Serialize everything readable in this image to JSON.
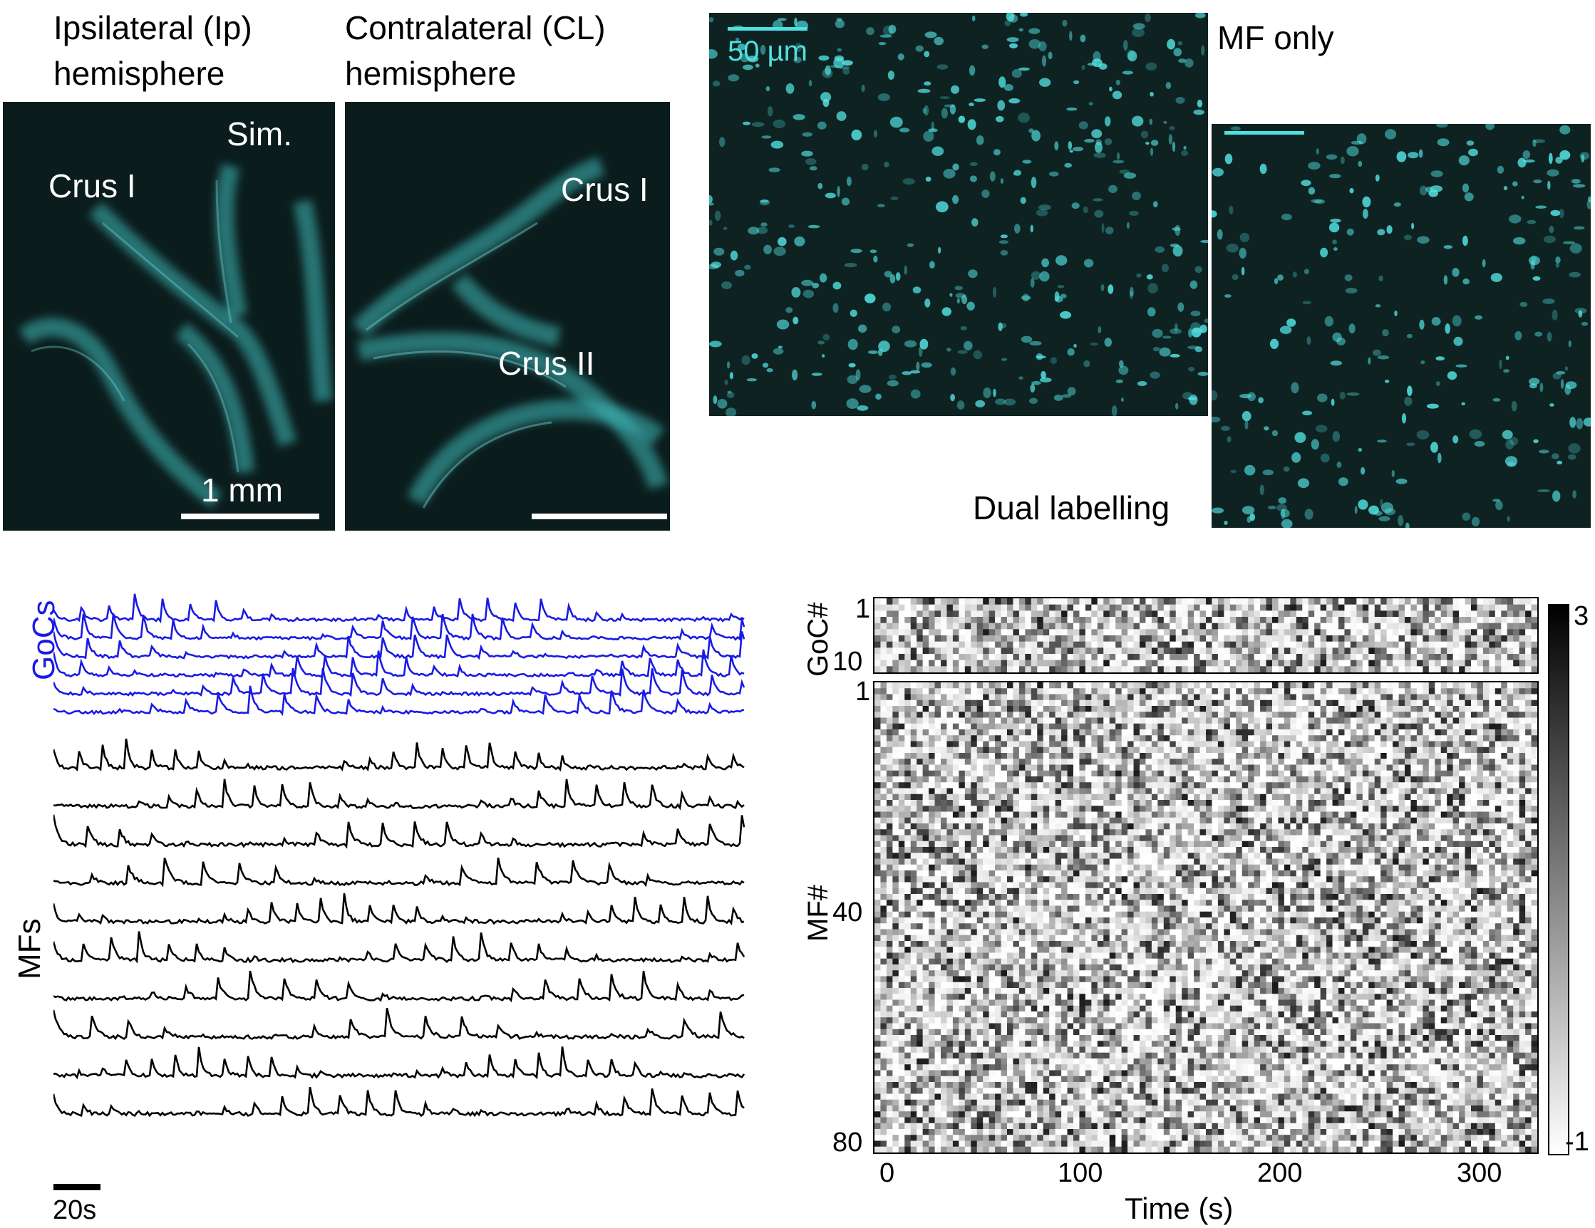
{
  "panels": {
    "ip_title": [
      "Ipsilateral (Ip)",
      "hemisphere"
    ],
    "cl_title": [
      "Contralateral  (CL)",
      "hemisphere"
    ],
    "ip_labels": {
      "crus1": "Crus I",
      "sim": "Sim.",
      "scale": "1 mm"
    },
    "cl_labels": {
      "crus1": "Crus I",
      "crus2": "Crus II"
    },
    "mf_only": "MF only",
    "mf_scale": "50 µm",
    "dual": "Dual labelling"
  },
  "traces": {
    "goc_label": "GoCs",
    "mf_label": "MFs",
    "scale": "20s",
    "goc_color": "#1a1ae6",
    "mf_color": "#000000",
    "goc_count": 6,
    "mf_count": 10
  },
  "heatmap": {
    "goc_axis": "GoC#",
    "mf_axis": "MF#",
    "goc_ticks": [
      "1",
      "10"
    ],
    "mf_ticks": [
      "1",
      "40",
      "80"
    ],
    "x_ticks": [
      "0",
      "100",
      "200",
      "300"
    ],
    "xlabel": "Time (s)",
    "cbar_ticks": [
      "3",
      "-1"
    ]
  },
  "chart_data": {
    "type": "heatmap",
    "xlabel": "Time (s)",
    "xlim": [
      0,
      330
    ],
    "x_ticks": [
      0,
      100,
      200,
      300
    ],
    "goc_rows": 12,
    "mf_rows": 80,
    "colorbar": {
      "min": -1,
      "max": 3,
      "colormap": "white-to-black"
    }
  }
}
